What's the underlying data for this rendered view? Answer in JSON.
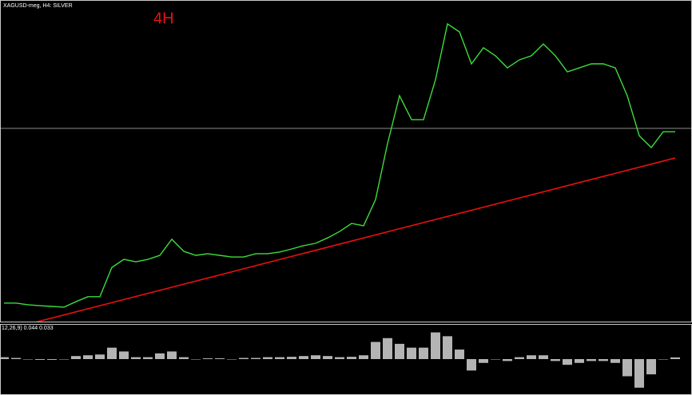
{
  "chart_data": [
    {
      "type": "line",
      "title": "XAGUSD-meg, H4: SILVER",
      "annotation": "4H",
      "series": [
        {
          "color": "#3cdc3c",
          "values": [
            17.18,
            17.18,
            17.11,
            17.07,
            17.04,
            17.01,
            17.24,
            17.45,
            17.45,
            18.69,
            19.03,
            18.93,
            19.03,
            19.2,
            19.88,
            19.37,
            19.2,
            19.27,
            19.2,
            19.13,
            19.13,
            19.27,
            19.27,
            19.34,
            19.47,
            19.61,
            19.71,
            19.94,
            20.21,
            20.55,
            20.45,
            21.56,
            23.93,
            25.95,
            24.94,
            24.94,
            26.63,
            28.99,
            28.65,
            27.3,
            27.98,
            27.64,
            27.13,
            27.47,
            27.64,
            28.14,
            27.64,
            26.96,
            27.13,
            27.3,
            27.3,
            27.13,
            25.95,
            24.26,
            23.76,
            24.43,
            24.43
          ]
        }
      ],
      "trendline": {
        "color": "#e81010",
        "values": [
          16.03,
          23.32
        ]
      },
      "hline": 24.57,
      "ylim": [
        16.5,
        30
      ]
    },
    {
      "type": "bar",
      "title": "12,26,9) 0.044 0.033",
      "color": "#b4b4b4",
      "values": [
        0.05,
        0.03,
        0.0,
        -0.02,
        -0.02,
        0.0,
        0.08,
        0.1,
        0.12,
        0.3,
        0.2,
        0.05,
        0.05,
        0.15,
        0.2,
        0.05,
        0.0,
        0.02,
        0.02,
        0.0,
        0.03,
        0.03,
        0.05,
        0.05,
        0.06,
        0.08,
        0.1,
        0.08,
        0.05,
        0.06,
        0.1,
        0.45,
        0.55,
        0.4,
        0.3,
        0.3,
        0.7,
        0.6,
        0.25,
        -0.3,
        -0.1,
        0.0,
        -0.05,
        0.05,
        0.1,
        0.1,
        -0.05,
        -0.15,
        -0.1,
        -0.05,
        -0.05,
        -0.1,
        -0.45,
        -0.75,
        -0.4,
        0.0,
        0.044
      ],
      "ylim": [
        -0.9,
        0.9
      ]
    }
  ]
}
